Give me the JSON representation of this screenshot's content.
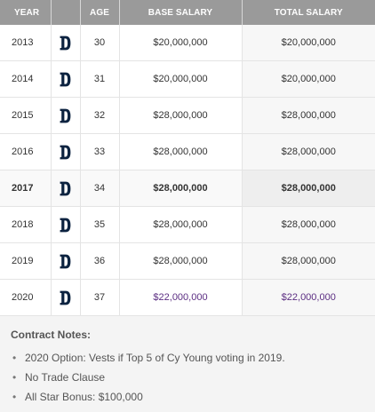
{
  "table": {
    "headers": {
      "year": "Year",
      "team": "",
      "age": "Age",
      "base_salary": "Base Salary",
      "total_salary": "Total Salary"
    },
    "team_logo_icon": "detroit-tigers-d-logo-icon",
    "accent_color": "#5b2d82",
    "rows": [
      {
        "year": "2013",
        "age": "30",
        "base_salary": "$20,000,000",
        "total_salary": "$20,000,000"
      },
      {
        "year": "2014",
        "age": "31",
        "base_salary": "$20,000,000",
        "total_salary": "$20,000,000"
      },
      {
        "year": "2015",
        "age": "32",
        "base_salary": "$28,000,000",
        "total_salary": "$28,000,000"
      },
      {
        "year": "2016",
        "age": "33",
        "base_salary": "$28,000,000",
        "total_salary": "$28,000,000"
      },
      {
        "year": "2017",
        "age": "34",
        "base_salary": "$28,000,000",
        "total_salary": "$28,000,000"
      },
      {
        "year": "2018",
        "age": "35",
        "base_salary": "$28,000,000",
        "total_salary": "$28,000,000"
      },
      {
        "year": "2019",
        "age": "36",
        "base_salary": "$28,000,000",
        "total_salary": "$28,000,000"
      },
      {
        "year": "2020",
        "age": "37",
        "base_salary": "$22,000,000",
        "total_salary": "$22,000,000"
      }
    ]
  },
  "notes": {
    "title": "Contract Notes:",
    "items": [
      "2020 Option: Vests if Top 5 of Cy Young voting in 2019.",
      "No Trade Clause",
      "All Star Bonus: $100,000"
    ]
  }
}
